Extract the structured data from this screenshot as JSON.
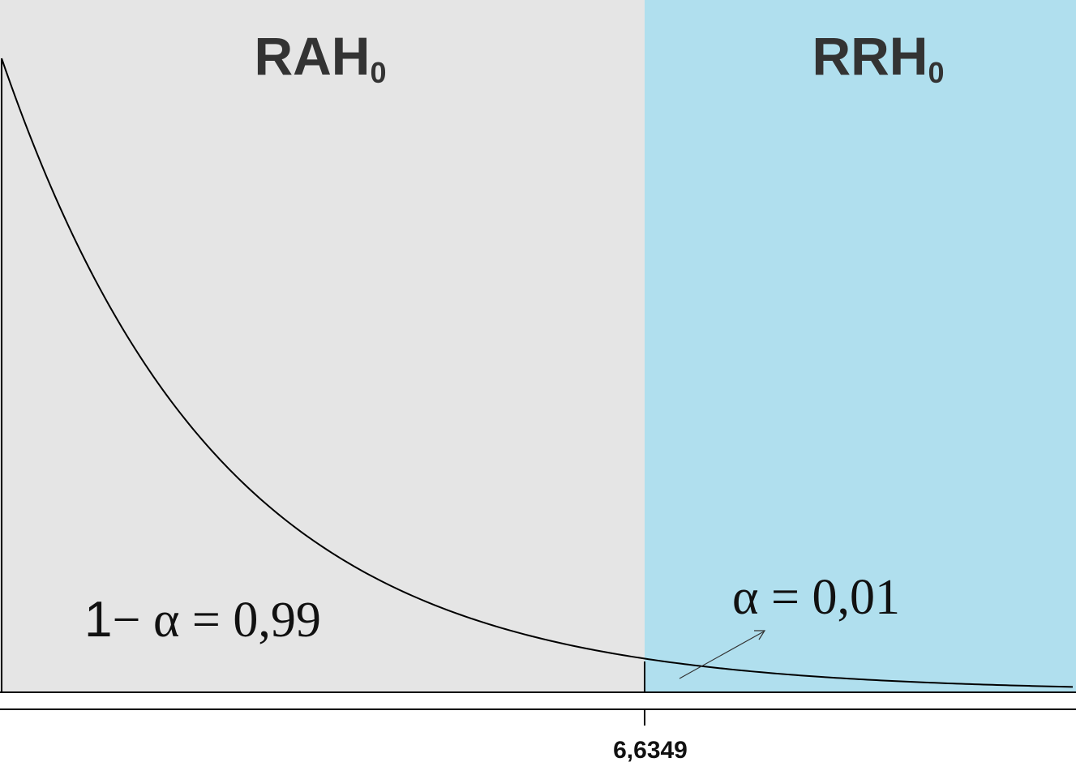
{
  "chart_data": {
    "type": "area",
    "distribution": "chi-square",
    "degrees_of_freedom": 1,
    "x_range": [
      0,
      10.72
    ],
    "critical_value": 6.6349,
    "tick_label": "6,6349",
    "regions": [
      {
        "name": "acceptance",
        "label": "RAH",
        "subscript": "0",
        "color": "#e5e5e5"
      },
      {
        "name": "rejection",
        "label": "RRH",
        "subscript": "0",
        "color": "#b0dfee"
      }
    ],
    "annotations": {
      "acceptance_prob_prefix": "1",
      "acceptance_prob_expr": "− α = 0,99",
      "rejection_prob": "α = 0,01"
    },
    "alpha": 0.01,
    "confidence": 0.99
  }
}
